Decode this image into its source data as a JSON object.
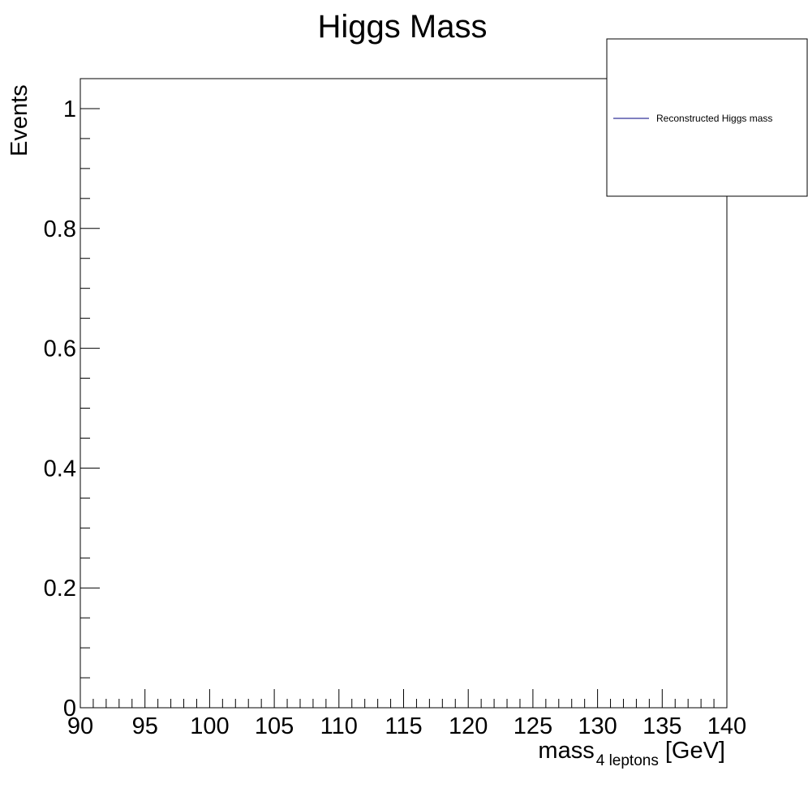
{
  "chart_data": {
    "type": "line",
    "title": "Higgs Mass",
    "xlabel": {
      "main": "mass",
      "subscript": "4 leptons",
      "unit": "[GeV]"
    },
    "ylabel": "Events",
    "xlim": [
      90,
      140
    ],
    "ylim": [
      0,
      1.05
    ],
    "x_ticks": [
      "90",
      "95",
      "100",
      "105",
      "110",
      "115",
      "120",
      "125",
      "130",
      "135",
      "140"
    ],
    "y_ticks": [
      "0",
      "0.2",
      "0.4",
      "0.6",
      "0.8",
      "1"
    ],
    "grid": false,
    "legend_position": "top-right",
    "series": [
      {
        "name": "Reconstructed Higgs mass",
        "color": "#000080",
        "points": []
      }
    ]
  }
}
